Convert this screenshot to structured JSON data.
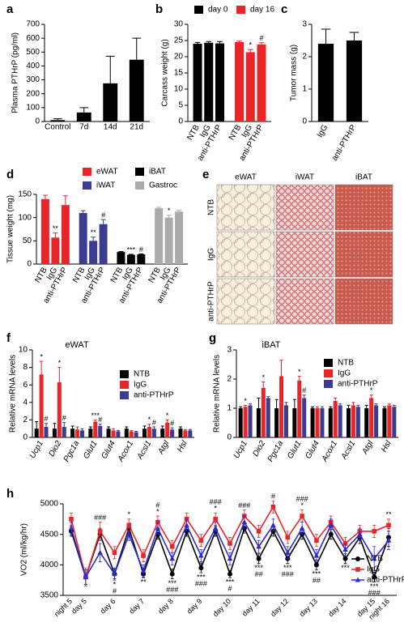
{
  "chart_data": [
    {
      "panel": "a",
      "type": "bar",
      "ylabel": "Plasma PTHrP (pg/ml)",
      "categories": [
        "Control",
        "7d",
        "14d",
        "21d"
      ],
      "values": [
        10,
        65,
        275,
        445
      ],
      "errors": [
        10,
        35,
        195,
        155
      ],
      "color": "#000000",
      "ylim": [
        0,
        700
      ],
      "yticks": [
        0,
        100,
        200,
        300,
        400,
        500,
        600,
        700
      ]
    },
    {
      "panel": "b",
      "type": "bar",
      "cluster": "series",
      "rotate_labels": true,
      "ylabel": "Carcass weight (g)",
      "categories": [
        "NTB",
        "IgG",
        "anti-PTHrP"
      ],
      "series": [
        {
          "name": "day 0",
          "color": "#000000",
          "values": [
            24,
            24.3,
            24.1
          ],
          "errors": [
            0.4,
            0.4,
            0.6
          ]
        },
        {
          "name": "day 16",
          "color": "#e8262a",
          "values": [
            24.5,
            21.4,
            23.8
          ],
          "errors": [
            0.3,
            0.8,
            0.5
          ],
          "sig": [
            null,
            "*",
            "#"
          ]
        }
      ],
      "ylim": [
        0,
        30
      ],
      "yticks": [
        0,
        5,
        10,
        15,
        20,
        25,
        30
      ]
    },
    {
      "panel": "c",
      "type": "bar",
      "rotate_labels": true,
      "ylabel": "Tumor mass (g)",
      "categories": [
        "IgG",
        "anti-PTHrP"
      ],
      "values": [
        2.4,
        2.5
      ],
      "errors": [
        0.45,
        0.25
      ],
      "color": "#000000",
      "ylim": [
        0,
        3
      ],
      "yticks": [
        0,
        1,
        2,
        3
      ]
    },
    {
      "panel": "d",
      "type": "bar",
      "cluster": "series",
      "rotate_labels": true,
      "ylabel": "Tissue weight (mg)",
      "categories": [
        "NTB",
        "IgG",
        "anti-PTHrP"
      ],
      "series": [
        {
          "name": "eWAT",
          "color": "#e8262a",
          "values": [
            140,
            57,
            127
          ],
          "errors": [
            8,
            10,
            20
          ],
          "sig": [
            null,
            "**",
            null
          ]
        },
        {
          "name": "iWAT",
          "color": "#3b3b8f",
          "values": [
            110,
            50,
            86
          ],
          "errors": [
            5,
            8,
            10
          ],
          "sig": [
            null,
            "**",
            "#"
          ]
        },
        {
          "name": "iBAT",
          "color": "#000000",
          "values": [
            26,
            20,
            21
          ],
          "errors": [
            1,
            1,
            1
          ],
          "sig": [
            null,
            "***",
            "#"
          ]
        },
        {
          "name": "Gastroc",
          "color": "#aaaaaa",
          "values": [
            120,
            100,
            113
          ],
          "errors": [
            2,
            5,
            3
          ],
          "sig": [
            null,
            "*",
            null
          ]
        }
      ],
      "ylim": [
        0,
        150
      ],
      "yticks": [
        0,
        50,
        100,
        150
      ]
    },
    {
      "panel": "f",
      "type": "bar",
      "cluster": "category",
      "rotate_labels": true,
      "italic_labels": true,
      "title": "eWAT",
      "ylabel": "Relative mRNA levels",
      "categories": [
        "Ucp1",
        "Dio2",
        "Pgc1a",
        "Glut1",
        "Glut4",
        "Acox1",
        "Acsl1",
        "Atgl",
        "Hsl"
      ],
      "series": [
        {
          "name": "NTB",
          "color": "#000000",
          "values": [
            1,
            1,
            1,
            1,
            1,
            1,
            1,
            1,
            1
          ],
          "errors": [
            0.8,
            0.6,
            0.3,
            0.2,
            0.2,
            0.2,
            0.3,
            0.3,
            0.2
          ]
        },
        {
          "name": "IgG",
          "color": "#e8262a",
          "values": [
            7.2,
            6.3,
            0.9,
            1.8,
            0.8,
            0.7,
            1.2,
            1.7,
            0.8
          ],
          "errors": [
            1.5,
            1.7,
            0.3,
            0.2,
            0.2,
            0.1,
            0.3,
            0.3,
            0.1
          ],
          "sig": [
            "*",
            "*",
            null,
            "***",
            null,
            null,
            "*",
            "*",
            null
          ]
        },
        {
          "name": "anti-PTHrP",
          "color": "#3b3b8f",
          "values": [
            1.2,
            1.2,
            0.8,
            1.3,
            0.7,
            0.6,
            1.0,
            0.9,
            0.8
          ],
          "errors": [
            0.4,
            0.5,
            0.2,
            0.2,
            0.1,
            0.1,
            0.2,
            0.2,
            0.1
          ],
          "sig": [
            "#",
            "#",
            null,
            "#",
            null,
            null,
            "#",
            "#",
            null
          ]
        }
      ],
      "ylim": [
        0,
        10
      ],
      "yticks": [
        0,
        2,
        4,
        6,
        8,
        10
      ]
    },
    {
      "panel": "g",
      "type": "bar",
      "cluster": "category",
      "rotate_labels": true,
      "italic_labels": true,
      "title": "iBAT",
      "ylabel": "Relative mRNA levels",
      "categories": [
        "Ucp1",
        "Dio2",
        "Pgc1a",
        "Glut1",
        "Glut4",
        "Acox1",
        "Acsl1",
        "Atgl",
        "Hsl"
      ],
      "series": [
        {
          "name": "NTB",
          "color": "#000000",
          "values": [
            1,
            1,
            1,
            1,
            1,
            1,
            1,
            1,
            1
          ],
          "errors": [
            0.05,
            0.35,
            0.3,
            0.3,
            0.05,
            0.05,
            0.1,
            0.1,
            0.05
          ]
        },
        {
          "name": "IgG",
          "color": "#e8262a",
          "values": [
            1.05,
            1.7,
            2.1,
            1.95,
            1.0,
            1.25,
            1.1,
            1.35,
            1.1
          ],
          "errors": [
            0.05,
            0.2,
            0.55,
            0.15,
            0.05,
            0.1,
            0.1,
            0.1,
            0.05
          ],
          "sig": [
            "*",
            "*",
            null,
            "*",
            null,
            null,
            null,
            "*",
            null
          ]
        },
        {
          "name": "anti-PTHrP",
          "color": "#3b3b8f",
          "values": [
            1.1,
            1.35,
            1.1,
            1.35,
            1.0,
            1.1,
            1.05,
            1.1,
            1.05
          ],
          "errors": [
            0.05,
            0.05,
            0.1,
            0.1,
            0.05,
            0.05,
            0.05,
            0.05,
            0.05
          ],
          "sig": [
            null,
            null,
            null,
            "#",
            null,
            null,
            null,
            null,
            null
          ]
        }
      ],
      "ylim": [
        0,
        3
      ],
      "yticks": [
        0,
        1,
        2,
        3
      ]
    },
    {
      "panel": "h",
      "type": "line",
      "ylabel": "VO2 (ml/kg/hr)",
      "categories": [
        "night 5",
        "day 5",
        null,
        "day 6",
        null,
        "day 7",
        null,
        "day 8",
        null,
        "day 9",
        null,
        "day 10",
        null,
        "day 11",
        null,
        "day 12",
        null,
        "day 13",
        null,
        "day 14",
        null,
        "day 15",
        "night 16"
      ],
      "series": [
        {
          "name": "NTB",
          "color": "#000000",
          "marker": "circle",
          "values": [
            4550,
            3800,
            4500,
            3850,
            4600,
            3850,
            4500,
            3850,
            4550,
            3950,
            4550,
            3850,
            4600,
            4100,
            4550,
            4100,
            4500,
            4000,
            4500,
            4100,
            4450,
            3800,
            4450
          ],
          "errors": [
            80,
            120,
            100,
            80,
            80,
            60,
            80,
            80,
            80,
            80,
            80,
            60,
            80,
            80,
            80,
            80,
            80,
            80,
            80,
            80,
            100,
            80,
            150
          ]
        },
        {
          "name": "IgG",
          "color": "#e8262a",
          "marker": "square",
          "values": [
            4750,
            3800,
            4550,
            4200,
            4650,
            4150,
            4700,
            4300,
            4750,
            4400,
            4750,
            4350,
            4800,
            4550,
            4950,
            4450,
            4800,
            4400,
            4700,
            4350,
            4550,
            4550,
            4650
          ],
          "errors": [
            100,
            150,
            150,
            100,
            100,
            100,
            100,
            100,
            100,
            100,
            100,
            100,
            100,
            100,
            100,
            100,
            100,
            100,
            100,
            100,
            100,
            100,
            100
          ]
        },
        {
          "name": "anti-PTHrP",
          "color": "#2a2ad0",
          "marker": "triangle",
          "values": [
            4600,
            3800,
            4200,
            3850,
            4500,
            3900,
            4600,
            4100,
            4650,
            4150,
            4600,
            4100,
            4700,
            4300,
            4650,
            4200,
            4600,
            4150,
            4650,
            4250,
            4500,
            4100,
            4400
          ],
          "errors": [
            100,
            120,
            150,
            100,
            100,
            100,
            100,
            100,
            100,
            100,
            100,
            100,
            100,
            100,
            100,
            100,
            100,
            100,
            100,
            100,
            100,
            200,
            150
          ]
        }
      ],
      "sig_top": [
        null,
        null,
        [
          "###"
        ],
        null,
        [
          "*"
        ],
        null,
        [
          "#",
          "*"
        ],
        null,
        null,
        null,
        [
          "###",
          "*"
        ],
        null,
        [
          "###"
        ],
        null,
        [
          "#"
        ],
        null,
        [
          "###",
          "*"
        ],
        null,
        null,
        null,
        null,
        null,
        [
          "**"
        ]
      ],
      "sig_bottom": [
        null,
        null,
        null,
        [
          "*",
          "#"
        ],
        null,
        [
          "**"
        ],
        null,
        [
          "***",
          "###"
        ],
        null,
        [
          "***",
          "###"
        ],
        null,
        [
          "***",
          "#"
        ],
        null,
        [
          "***",
          "##"
        ],
        null,
        [
          "***",
          "###"
        ],
        null,
        [
          "***",
          "##"
        ],
        null,
        [
          "***"
        ],
        null,
        [
          "***",
          "###"
        ],
        null
      ],
      "ylim": [
        3500,
        5000
      ],
      "yticks": [
        3500,
        4000,
        4500,
        5000
      ]
    }
  ],
  "histology": {
    "panel": "e",
    "columns": [
      "eWAT",
      "iWAT",
      "iBAT"
    ],
    "rows": [
      "NTB",
      "IgG",
      "anti-PTHrP"
    ]
  }
}
